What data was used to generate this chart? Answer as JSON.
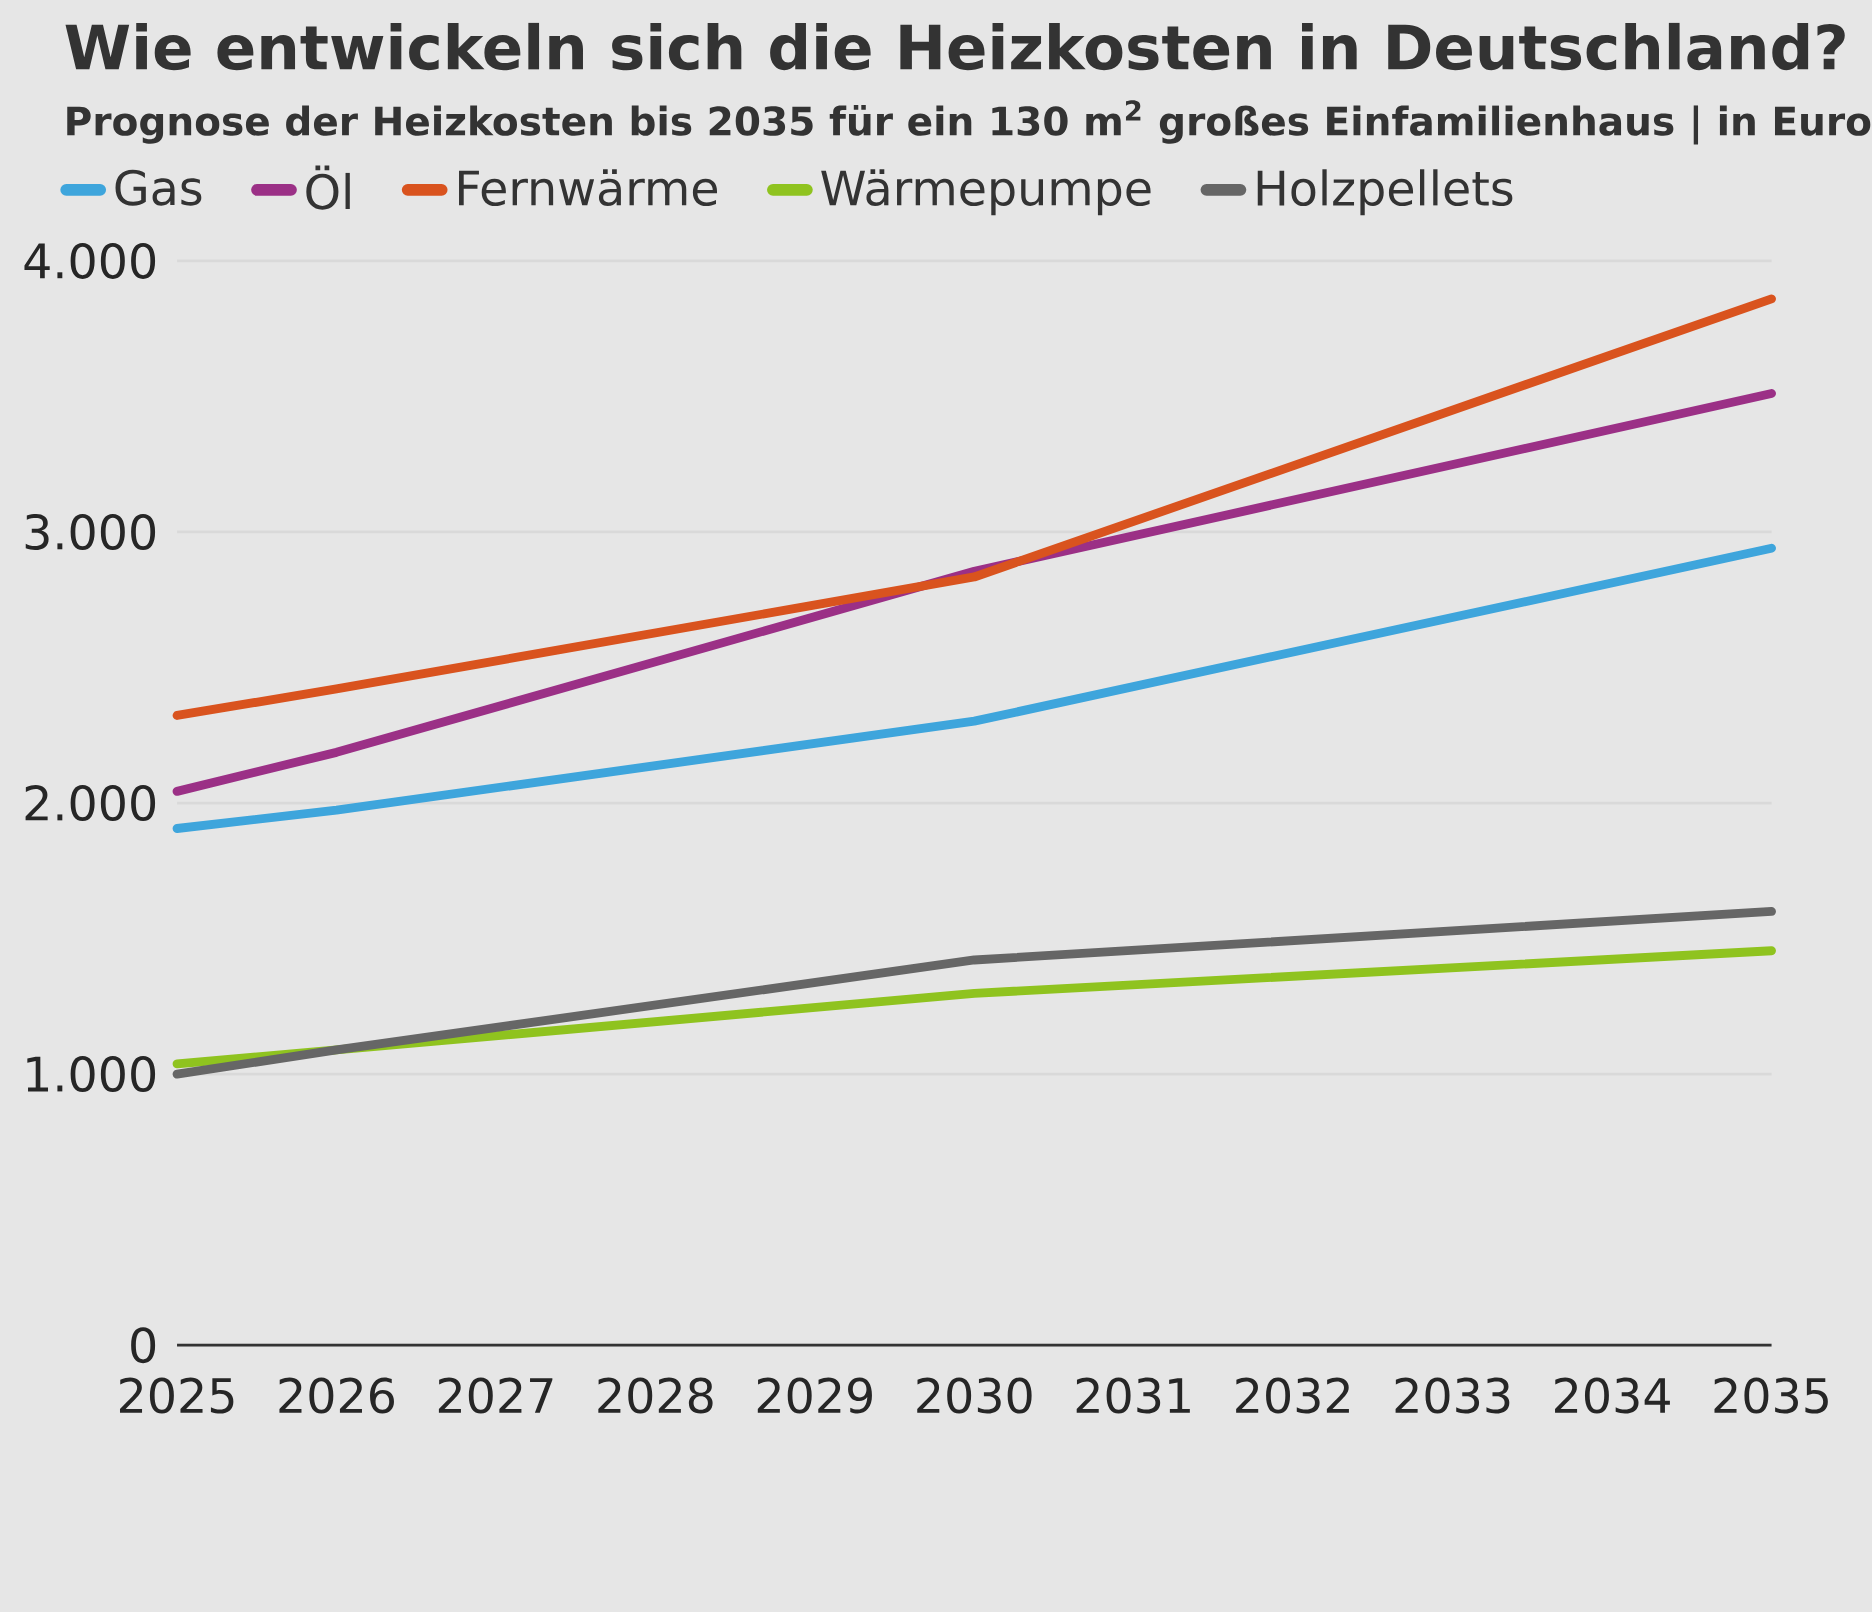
{
  "chart_data": {
    "type": "line",
    "title": "Wie entwickeln sich die Heizkosten in Deutschland?",
    "subtitle": "Prognose der Heizkosten bis 2035 für ein 130 m$^{2}$ großes Einfamilienhaus | in Euro",
    "xlim": [
      2025,
      2035
    ],
    "xticks": [
      2025,
      2026,
      2027,
      2028,
      2029,
      2030,
      2031,
      2032,
      2033,
      2034,
      2035
    ],
    "ylim": [
      0,
      4000
    ],
    "yticks": [
      {
        "value": 0,
        "label": "0"
      },
      {
        "value": 1000,
        "label": "1.000"
      },
      {
        "value": 2000,
        "label": "2.000"
      },
      {
        "value": 3000,
        "label": "3.000"
      },
      {
        "value": 4000,
        "label": "4.000"
      }
    ],
    "grid": "y",
    "legend": "top left",
    "marker": "none",
    "line_style": "solid",
    "series": [
      {
        "name": "Gas",
        "color": "#3ea5dc",
        "x": [
          2025,
          2026,
          2030,
          2035
        ],
        "values": [
          1906,
          1974,
          2302,
          2940
        ]
      },
      {
        "name": "Öl",
        "color": "#9b3086",
        "x": [
          2025,
          2026,
          2030,
          2035
        ],
        "values": [
          2043,
          2187,
          2855,
          3511
        ]
      },
      {
        "name": "Fernwärme",
        "color": "#d9531e",
        "x": [
          2025,
          2026,
          2030,
          2035
        ],
        "values": [
          2323,
          2421,
          2834,
          3860
        ]
      },
      {
        "name": "Wärmepumpe",
        "color": "#8fc31f",
        "x": [
          2025,
          2026,
          2030,
          2035
        ],
        "values": [
          1038,
          1089,
          1298,
          1455
        ]
      },
      {
        "name": "Holzpellets",
        "color": "#666666",
        "x": [
          2025,
          2026,
          2030,
          2035
        ],
        "values": [
          1000,
          1089,
          1421,
          1600
        ]
      }
    ]
  }
}
